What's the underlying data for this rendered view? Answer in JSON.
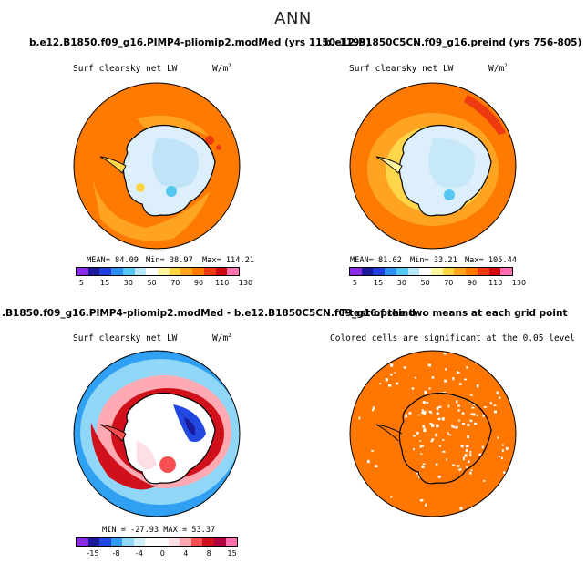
{
  "figure": {
    "title": "ANN"
  },
  "panels": [
    {
      "title": "b.e12.B1850.f09_g16.PIMP4-pliomip2.modMed (yrs 1150-1199)",
      "subtitle": "Surf clearsky net LW",
      "units": "W/m",
      "units_sup": "2",
      "stats": {
        "mean": "MEAN=  84.09",
        "min": "Min=  38.97",
        "max": "Max=  114.21"
      },
      "colorbar_labels": [
        "5",
        "15",
        "30",
        "50",
        "70",
        "90",
        "110",
        "130"
      ]
    },
    {
      "title": "b.e12.B1850C5CN.f09_g16.preind (yrs 756-805)",
      "subtitle": "Surf clearsky net LW",
      "units": "W/m",
      "units_sup": "2",
      "stats": {
        "mean": "MEAN=  81.02",
        "min": "Min=  33.21",
        "max": "Max=  105.44"
      },
      "colorbar_labels": [
        "5",
        "15",
        "30",
        "50",
        "70",
        "90",
        "110",
        "130"
      ]
    },
    {
      "title": ".B1850.f09_g16.PIMP4-pliomip2.modMed - b.e12.B1850C5CN.f09_g16.preind",
      "subtitle": "Surf clearsky net LW",
      "units": "W/m",
      "units_sup": "2",
      "stats": {
        "minmax": "MIN = -27.93  MAX =  53.37"
      },
      "colorbar_labels": [
        "-15",
        "-8",
        "-4",
        "0",
        "4",
        "8",
        "15"
      ]
    },
    {
      "title": "T-test of the two means at each grid point",
      "subtitle": "Colored cells are significant at the 0.05 level"
    }
  ],
  "colors": {
    "abs_colorbar": [
      "#8a2be2",
      "#1a1a9a",
      "#1f3fd6",
      "#2f8ff0",
      "#56c6f2",
      "#b7e6f7",
      "#ffffff",
      "#fff5a0",
      "#ffd54a",
      "#ffa422",
      "#ff7a00",
      "#ee3a10",
      "#cc0a10",
      "#ff6fb0"
    ],
    "diff_colorbar": [
      "#8a2be2",
      "#1a1a9a",
      "#2148e0",
      "#2f9cf2",
      "#8fd6f7",
      "#d2eef9",
      "#ffffff",
      "#ffffff",
      "#ffdfe6",
      "#ffaab2",
      "#f85050",
      "#d0101a",
      "#b00040",
      "#ff6fb0"
    ],
    "ttest_fill": "#ff7700",
    "ocean_panel1": "#ff7a00",
    "ocean_panel2": "#ff7a00",
    "diff_ocean": "#2fa0f2"
  }
}
